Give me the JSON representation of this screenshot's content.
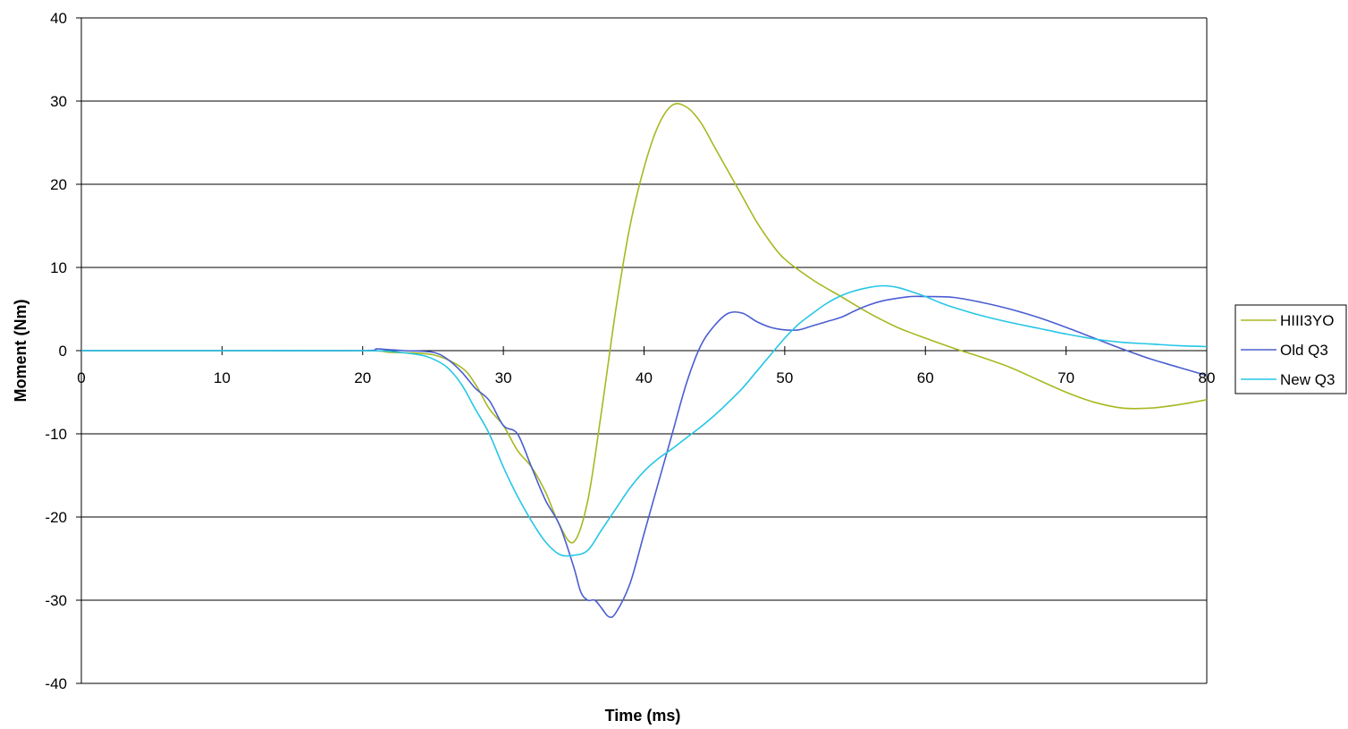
{
  "chart_data": {
    "type": "line",
    "title": "",
    "xlabel": "Time (ms)",
    "ylabel": "Moment (Nm)",
    "xlim": [
      0,
      80
    ],
    "ylim": [
      -40,
      40
    ],
    "x_ticks": [
      0,
      10,
      20,
      30,
      40,
      50,
      60,
      70,
      80
    ],
    "y_ticks": [
      40,
      30,
      20,
      10,
      0,
      -10,
      -20,
      -30,
      -40
    ],
    "grid": "horizontal",
    "legend_position": "right",
    "series": [
      {
        "name": "HIII3YO",
        "color": "#a8b820",
        "points": [
          [
            0,
            0
          ],
          [
            10,
            0
          ],
          [
            20,
            0
          ],
          [
            22,
            -0.2
          ],
          [
            25,
            -0.5
          ],
          [
            27,
            -2
          ],
          [
            28,
            -4
          ],
          [
            29,
            -7
          ],
          [
            30,
            -9
          ],
          [
            31,
            -12
          ],
          [
            32,
            -14
          ],
          [
            33,
            -17
          ],
          [
            34,
            -21
          ],
          [
            35,
            -23
          ],
          [
            36,
            -18
          ],
          [
            37,
            -7
          ],
          [
            38,
            5
          ],
          [
            39,
            15
          ],
          [
            40,
            22
          ],
          [
            41,
            27
          ],
          [
            42,
            29.5
          ],
          [
            43,
            29.3
          ],
          [
            44,
            27.5
          ],
          [
            45,
            24.5
          ],
          [
            46,
            21.5
          ],
          [
            47,
            18.5
          ],
          [
            48,
            15.5
          ],
          [
            49,
            13
          ],
          [
            50,
            11
          ],
          [
            52,
            8.5
          ],
          [
            54,
            6.5
          ],
          [
            56,
            4.5
          ],
          [
            58,
            2.8
          ],
          [
            60,
            1.5
          ],
          [
            62,
            0.3
          ],
          [
            64,
            -0.8
          ],
          [
            66,
            -2
          ],
          [
            68,
            -3.5
          ],
          [
            70,
            -5
          ],
          [
            72,
            -6.2
          ],
          [
            74,
            -6.9
          ],
          [
            76,
            -6.9
          ],
          [
            78,
            -6.5
          ],
          [
            80,
            -5.9
          ]
        ]
      },
      {
        "name": "Old Q3",
        "color": "#4a5ed0",
        "points": [
          [
            0,
            0
          ],
          [
            5,
            0
          ],
          [
            10,
            0
          ],
          [
            12,
            0
          ],
          [
            20,
            0
          ],
          [
            21,
            0.2
          ],
          [
            22,
            0.1
          ],
          [
            23,
            0
          ],
          [
            25,
            -0.2
          ],
          [
            26,
            -1
          ],
          [
            27,
            -2.5
          ],
          [
            28,
            -4.5
          ],
          [
            29,
            -6
          ],
          [
            30,
            -9
          ],
          [
            31,
            -10
          ],
          [
            32,
            -14
          ],
          [
            33,
            -18
          ],
          [
            34,
            -21
          ],
          [
            35,
            -26
          ],
          [
            35.5,
            -29
          ],
          [
            36,
            -30
          ],
          [
            36.5,
            -30
          ],
          [
            37,
            -31
          ],
          [
            37.5,
            -32
          ],
          [
            38,
            -31.5
          ],
          [
            39,
            -28
          ],
          [
            40,
            -22
          ],
          [
            41,
            -16
          ],
          [
            42,
            -10
          ],
          [
            43,
            -4
          ],
          [
            44,
            0.5
          ],
          [
            45,
            3
          ],
          [
            46,
            4.5
          ],
          [
            47,
            4.5
          ],
          [
            48,
            3.5
          ],
          [
            49,
            2.8
          ],
          [
            50,
            2.5
          ],
          [
            51,
            2.5
          ],
          [
            52,
            3
          ],
          [
            53,
            3.5
          ],
          [
            54,
            4
          ],
          [
            55,
            4.8
          ],
          [
            56,
            5.5
          ],
          [
            57,
            6
          ],
          [
            58,
            6.3
          ],
          [
            59,
            6.5
          ],
          [
            60,
            6.5
          ],
          [
            62,
            6.4
          ],
          [
            64,
            5.8
          ],
          [
            66,
            5
          ],
          [
            68,
            4
          ],
          [
            70,
            2.8
          ],
          [
            72,
            1.5
          ],
          [
            74,
            0.2
          ],
          [
            76,
            -1
          ],
          [
            78,
            -2
          ],
          [
            80,
            -3
          ]
        ]
      },
      {
        "name": "New Q3",
        "color": "#26c6e6",
        "points": [
          [
            0,
            0
          ],
          [
            10,
            0
          ],
          [
            20,
            0
          ],
          [
            22,
            -0.1
          ],
          [
            24,
            -0.5
          ],
          [
            25,
            -1
          ],
          [
            26,
            -2
          ],
          [
            27,
            -4
          ],
          [
            28,
            -7
          ],
          [
            29,
            -10
          ],
          [
            30,
            -14
          ],
          [
            31,
            -17.5
          ],
          [
            32,
            -20.5
          ],
          [
            33,
            -23
          ],
          [
            34,
            -24.5
          ],
          [
            35,
            -24.6
          ],
          [
            36,
            -24
          ],
          [
            37,
            -21.5
          ],
          [
            38,
            -19
          ],
          [
            39,
            -16.5
          ],
          [
            40,
            -14.5
          ],
          [
            41,
            -13
          ],
          [
            42,
            -11.8
          ],
          [
            43,
            -10.5
          ],
          [
            44,
            -9.2
          ],
          [
            45,
            -7.8
          ],
          [
            46,
            -6.2
          ],
          [
            47,
            -4.5
          ],
          [
            48,
            -2.5
          ],
          [
            49,
            -0.5
          ],
          [
            50,
            1.5
          ],
          [
            51,
            3.2
          ],
          [
            52,
            4.5
          ],
          [
            53,
            5.7
          ],
          [
            54,
            6.6
          ],
          [
            55,
            7.2
          ],
          [
            56,
            7.6
          ],
          [
            57,
            7.8
          ],
          [
            58,
            7.6
          ],
          [
            59,
            7.1
          ],
          [
            60,
            6.5
          ],
          [
            61,
            5.8
          ],
          [
            62,
            5.2
          ],
          [
            64,
            4.2
          ],
          [
            66,
            3.4
          ],
          [
            68,
            2.7
          ],
          [
            70,
            2
          ],
          [
            72,
            1.4
          ],
          [
            74,
            1
          ],
          [
            76,
            0.8
          ],
          [
            78,
            0.6
          ],
          [
            80,
            0.5
          ]
        ]
      }
    ]
  }
}
